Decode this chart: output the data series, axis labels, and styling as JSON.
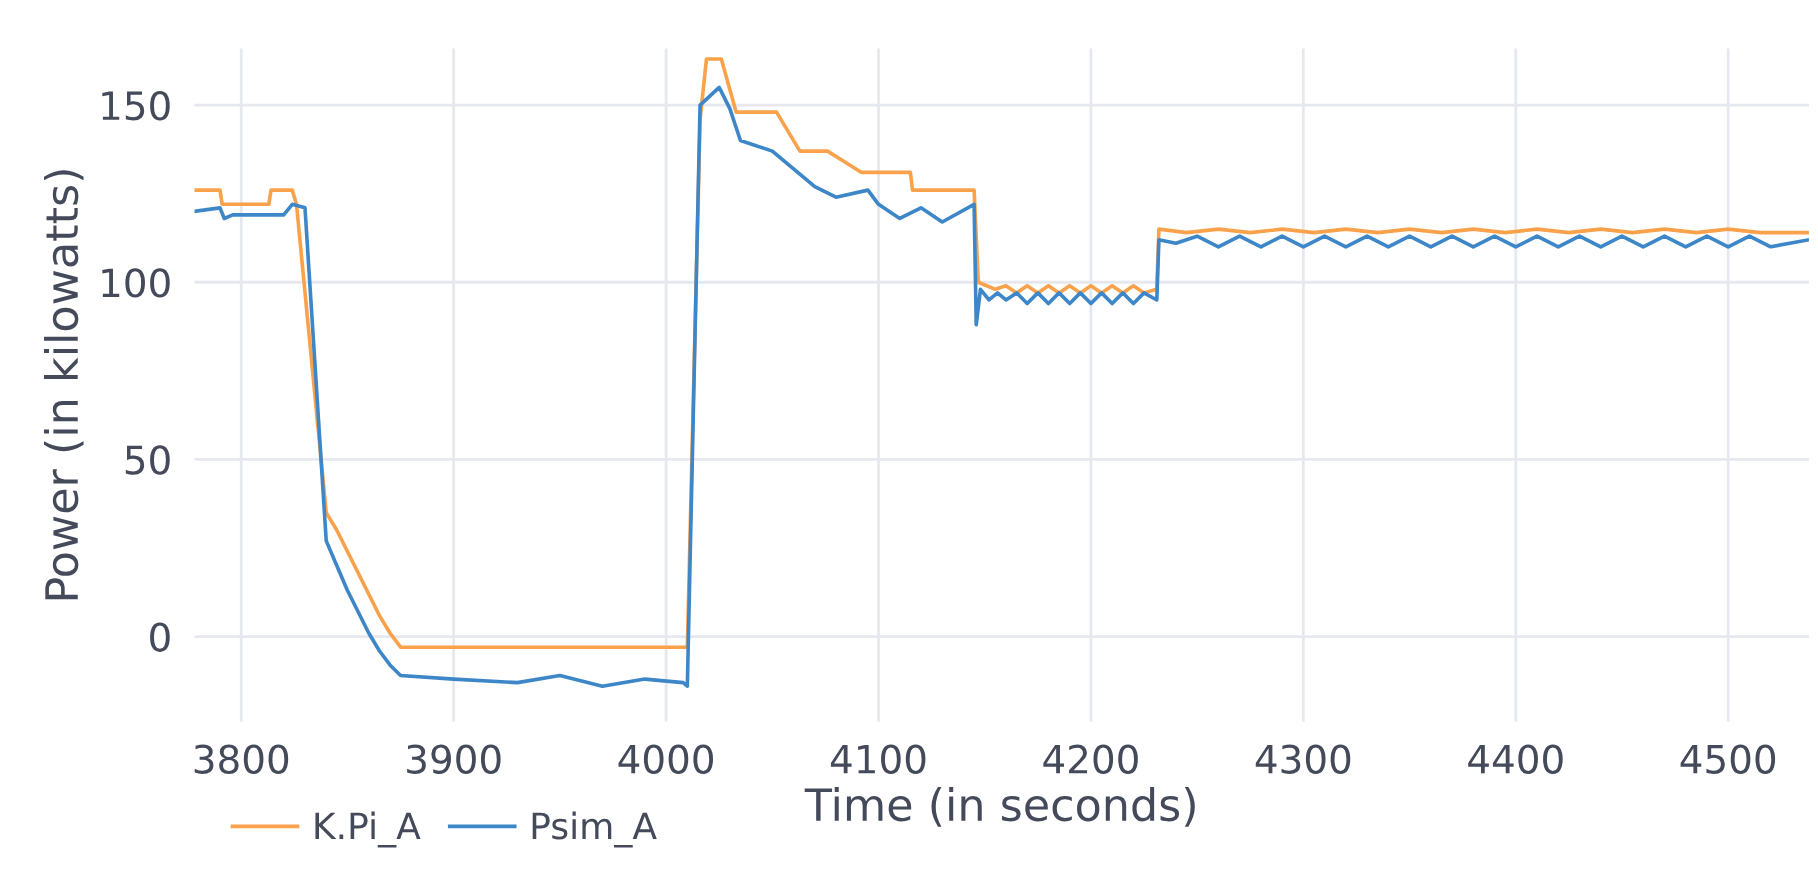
{
  "chart_data": {
    "type": "line",
    "xlabel": "Time (in seconds)",
    "ylabel": "Power (in kilowatts)",
    "xlim": [
      3778,
      4538
    ],
    "ylim": [
      -24,
      166
    ],
    "xticks": [
      3800,
      3900,
      4000,
      4100,
      4200,
      4300,
      4400,
      4500
    ],
    "yticks": [
      0,
      50,
      100,
      150
    ],
    "grid": true,
    "legend": "bottom left",
    "marker": "none",
    "line_style": "solid",
    "series": [
      {
        "name": "K.Pi_A",
        "color": "#f9a24b",
        "x": [
          3778,
          3790,
          3791,
          3813,
          3814,
          3824,
          3826,
          3840,
          3845,
          3850,
          3855,
          3860,
          3865,
          3870,
          3875,
          3900,
          3950,
          4000,
          4010,
          4016,
          4019,
          4026,
          4033,
          4052,
          4057,
          4063,
          4076,
          4084,
          4092,
          4115,
          4116,
          4143,
          4145,
          4147,
          4155,
          4160,
          4165,
          4170,
          4175,
          4180,
          4185,
          4190,
          4195,
          4200,
          4205,
          4210,
          4215,
          4220,
          4225,
          4231,
          4232,
          4245,
          4260,
          4275,
          4290,
          4305,
          4320,
          4335,
          4350,
          4365,
          4380,
          4395,
          4410,
          4425,
          4440,
          4455,
          4470,
          4485,
          4500,
          4515,
          4538
        ],
        "values": [
          126,
          126,
          122,
          122,
          126,
          126,
          122,
          35,
          30,
          24,
          18,
          12,
          6,
          1,
          -3,
          -3,
          -3,
          -3,
          -3,
          146,
          163,
          163,
          148,
          148,
          143,
          137,
          137,
          134,
          131,
          131,
          126,
          126,
          126,
          100,
          98,
          99,
          97,
          99,
          97,
          99,
          97,
          99,
          97,
          99,
          97,
          99,
          97,
          99,
          97,
          98,
          115,
          114,
          115,
          114,
          115,
          114,
          115,
          114,
          115,
          114,
          115,
          114,
          115,
          114,
          115,
          114,
          115,
          114,
          115,
          114,
          114
        ]
      },
      {
        "name": "Psim_A",
        "color": "#3d87c8",
        "x": [
          3778,
          3790,
          3792,
          3796,
          3820,
          3824,
          3830,
          3840,
          3845,
          3850,
          3855,
          3860,
          3865,
          3870,
          3875,
          3900,
          3930,
          3950,
          3970,
          3990,
          4008,
          4010,
          4016,
          4025,
          4030,
          4035,
          4050,
          4060,
          4070,
          4080,
          4095,
          4100,
          4110,
          4120,
          4130,
          4145,
          4146,
          4148,
          4152,
          4156,
          4160,
          4165,
          4170,
          4175,
          4180,
          4185,
          4190,
          4195,
          4200,
          4205,
          4210,
          4215,
          4220,
          4225,
          4231,
          4232,
          4240,
          4250,
          4260,
          4270,
          4280,
          4290,
          4300,
          4310,
          4320,
          4330,
          4340,
          4350,
          4360,
          4370,
          4380,
          4390,
          4400,
          4410,
          4420,
          4430,
          4440,
          4450,
          4460,
          4470,
          4480,
          4490,
          4500,
          4510,
          4520,
          4538
        ],
        "values": [
          120,
          121,
          118,
          119,
          119,
          122,
          121,
          27,
          20,
          13,
          7,
          1,
          -4,
          -8,
          -11,
          -12,
          -13,
          -11,
          -14,
          -12,
          -13,
          -14,
          150,
          155,
          149,
          140,
          137,
          132,
          127,
          124,
          126,
          122,
          118,
          121,
          117,
          122,
          88,
          98,
          95,
          97,
          95,
          97,
          94,
          97,
          94,
          97,
          94,
          97,
          94,
          97,
          94,
          97,
          94,
          97,
          95,
          112,
          111,
          113,
          110,
          113,
          110,
          113,
          110,
          113,
          110,
          113,
          110,
          113,
          110,
          113,
          110,
          113,
          110,
          113,
          110,
          113,
          110,
          113,
          110,
          113,
          110,
          113,
          110,
          113,
          110,
          112
        ]
      }
    ]
  }
}
